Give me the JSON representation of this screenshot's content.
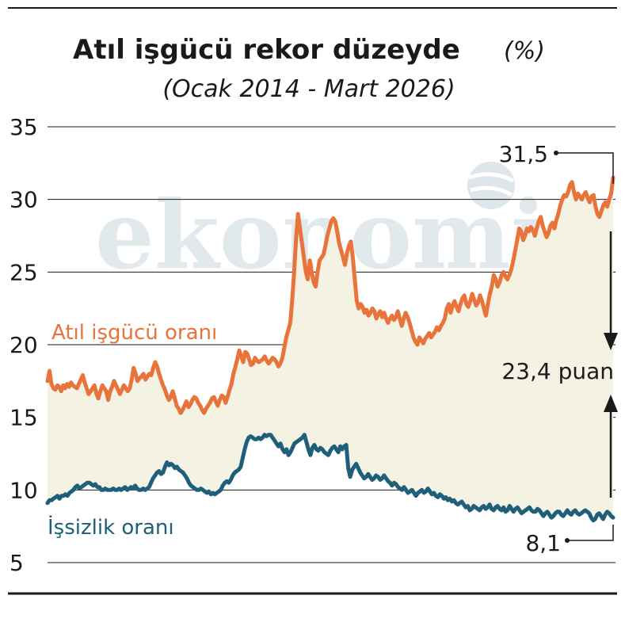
{
  "chart_data": {
    "type": "line",
    "title": "Atıl işgücü rekor düzeyde",
    "title_unit": "(%)",
    "subtitle": "(Ocak 2014 - Mart 2026)",
    "ylim": [
      5,
      35
    ],
    "yticks": [
      "35",
      "30",
      "25",
      "20",
      "15",
      "10",
      "5"
    ],
    "grid": true,
    "x_start": "Ocak 2014",
    "x_end": "Mart 2026",
    "series": [
      {
        "name": "Atıl işgücü oranı",
        "color": "#e8743b",
        "values": [
          17.5,
          18.2,
          17.3,
          17.0,
          16.9,
          17.2,
          17.1,
          16.8,
          17.2,
          17.0,
          17.3,
          17.1,
          17.4,
          17.2,
          17.1,
          17.0,
          17.3,
          17.6,
          17.9,
          17.4,
          17.0,
          16.6,
          16.8,
          17.0,
          17.2,
          16.6,
          16.3,
          16.8,
          17.2,
          17.0,
          16.8,
          16.2,
          16.8,
          17.1,
          17.5,
          17.2,
          16.9,
          16.6,
          16.9,
          17.2,
          17.0,
          16.8,
          17.0,
          17.6,
          18.4,
          18.0,
          17.5,
          17.7,
          17.8,
          18.0,
          17.6,
          17.8,
          18.0,
          17.9,
          18.4,
          18.8,
          18.5,
          18.0,
          17.6,
          17.2,
          16.9,
          16.5,
          16.2,
          16.4,
          16.8,
          16.3,
          15.8,
          15.6,
          15.3,
          15.5,
          15.8,
          16.1,
          15.7,
          15.9,
          16.2,
          16.4,
          16.3,
          16.0,
          15.8,
          15.5,
          15.3,
          15.6,
          15.8,
          16.0,
          16.3,
          16.4,
          16.1,
          15.8,
          16.2,
          16.5,
          16.4,
          16.0,
          16.4,
          16.9,
          17.3,
          18.0,
          18.5,
          19.0,
          19.6,
          19.2,
          18.8,
          19.5,
          19.4,
          19.0,
          18.6,
          18.7,
          19.1,
          18.9,
          18.8,
          18.9,
          19.0,
          19.2,
          18.9,
          18.7,
          18.9,
          19.1,
          19.0,
          18.8,
          18.5,
          18.7,
          19.1,
          19.8,
          20.5,
          21.0,
          21.5,
          23.0,
          25.0,
          27.3,
          29.0,
          28.0,
          27.0,
          26.0,
          25.0,
          24.5,
          25.8,
          25.0,
          24.3,
          24.0,
          25.0,
          25.8,
          26.0,
          26.2,
          26.8,
          27.5,
          28.0,
          28.5,
          28.7,
          28.5,
          27.8,
          27.0,
          26.5,
          26.0,
          25.5,
          26.3,
          26.8,
          27.1,
          26.0,
          24.5,
          23.0,
          22.5,
          22.8,
          22.6,
          22.2,
          22.4,
          22.0,
          22.2,
          22.5,
          22.3,
          21.8,
          22.1,
          22.3,
          21.9,
          22.2,
          21.8,
          21.5,
          21.8,
          22.0,
          21.7,
          21.9,
          22.3,
          21.8,
          21.3,
          21.8,
          22.2,
          21.9,
          21.5,
          21.0,
          20.5,
          20.2,
          20.0,
          20.5,
          20.3,
          20.1,
          20.4,
          20.6,
          20.8,
          20.5,
          20.7,
          20.9,
          21.2,
          21.0,
          21.3,
          21.5,
          21.8,
          22.5,
          22.8,
          22.2,
          22.7,
          23.0,
          22.6,
          22.3,
          22.8,
          23.2,
          23.4,
          22.8,
          22.6,
          23.0,
          23.5,
          23.1,
          22.7,
          22.9,
          23.4,
          23.0,
          22.5,
          22.0,
          22.8,
          23.5,
          24.0,
          24.8,
          24.5,
          24.0,
          24.3,
          24.8,
          25.0,
          24.7,
          24.5,
          24.8,
          25.2,
          25.8,
          26.5,
          27.2,
          28.0,
          27.8,
          27.2,
          27.5,
          28.0,
          27.8,
          28.1,
          27.9,
          27.5,
          28.0,
          28.5,
          28.8,
          28.2,
          27.8,
          27.4,
          27.7,
          28.2,
          28.4,
          28.0,
          28.6,
          29.0,
          29.6,
          30.0,
          30.3,
          30.2,
          30.5,
          31.0,
          31.2,
          30.5,
          30.0,
          30.4,
          30.2,
          30.0,
          30.3,
          30.5,
          30.1,
          29.8,
          30.2,
          30.3,
          29.5,
          29.0,
          28.8,
          29.2,
          29.6,
          29.8,
          29.5,
          30.0,
          30.4,
          31.5
        ]
      },
      {
        "name": "İşsizlik oranı",
        "color": "#1f5f7a",
        "values": [
          9.1,
          9.3,
          9.3,
          9.4,
          9.5,
          9.6,
          9.4,
          9.6,
          9.6,
          9.7,
          9.6,
          9.8,
          9.9,
          10.0,
          10.2,
          10.3,
          10.1,
          10.2,
          10.3,
          10.4,
          10.5,
          10.5,
          10.4,
          10.3,
          10.4,
          10.2,
          10.2,
          10.0,
          10.0,
          10.1,
          10.0,
          10.0,
          10.0,
          10.1,
          10.0,
          10.0,
          10.1,
          10.0,
          10.1,
          10.2,
          10.0,
          10.1,
          10.2,
          10.1,
          10.3,
          10.1,
          10.0,
          10.0,
          10.1,
          10.0,
          10.1,
          10.2,
          10.5,
          10.8,
          11.0,
          11.2,
          11.3,
          11.1,
          11.2,
          11.6,
          11.9,
          11.7,
          11.8,
          11.7,
          11.5,
          11.6,
          11.4,
          11.3,
          11.2,
          11.0,
          10.8,
          10.5,
          10.3,
          10.2,
          10.1,
          10.0,
          10.0,
          10.1,
          10.0,
          9.9,
          9.8,
          9.9,
          9.7,
          9.8,
          9.7,
          9.8,
          9.9,
          10.0,
          10.3,
          10.5,
          10.6,
          10.5,
          10.7,
          11.0,
          11.2,
          11.3,
          11.4,
          11.6,
          12.2,
          12.8,
          13.3,
          13.6,
          13.7,
          13.6,
          13.5,
          13.5,
          13.6,
          13.5,
          13.6,
          13.8,
          13.7,
          13.8,
          13.8,
          13.6,
          13.4,
          13.2,
          13.0,
          13.2,
          12.8,
          12.6,
          12.8,
          12.4,
          12.6,
          12.9,
          13.2,
          13.3,
          13.4,
          13.5,
          13.6,
          13.8,
          13.3,
          12.8,
          12.4,
          12.9,
          13.1,
          12.8,
          12.7,
          12.9,
          12.8,
          12.6,
          12.5,
          12.4,
          12.7,
          12.9,
          13.0,
          12.8,
          12.6,
          13.0,
          12.8,
          13.0,
          13.1,
          11.5,
          10.9,
          11.4,
          11.6,
          11.8,
          11.5,
          11.2,
          11.0,
          10.8,
          10.9,
          11.1,
          10.9,
          10.7,
          10.8,
          11.0,
          10.9,
          10.7,
          10.8,
          11.0,
          10.8,
          10.6,
          10.5,
          10.3,
          10.5,
          10.4,
          10.2,
          10.1,
          10.0,
          10.2,
          10.0,
          9.8,
          9.9,
          10.0,
          9.8,
          9.6,
          9.8,
          9.9,
          10.0,
          9.8,
          9.9,
          10.1,
          9.9,
          9.7,
          9.8,
          9.6,
          9.5,
          9.7,
          9.6,
          9.4,
          9.5,
          9.3,
          9.4,
          9.2,
          9.3,
          9.1,
          9.0,
          9.1,
          9.2,
          9.0,
          8.8,
          8.9,
          8.6,
          8.7,
          8.9,
          8.8,
          8.7,
          8.6,
          8.8,
          8.9,
          8.7,
          8.8,
          9.0,
          8.7,
          8.6,
          8.8,
          8.9,
          8.7,
          8.6,
          8.8,
          8.5,
          8.6,
          8.9,
          8.7,
          8.5,
          8.7,
          8.8,
          8.6,
          8.4,
          8.5,
          8.6,
          8.7,
          8.8,
          8.6,
          8.5,
          8.5,
          8.7,
          8.6,
          8.4,
          8.2,
          8.4,
          8.5,
          8.3,
          8.1,
          8.2,
          8.4,
          8.5,
          8.5,
          8.3,
          8.2,
          8.4,
          8.6,
          8.4,
          8.3,
          8.5,
          8.6,
          8.4,
          8.3,
          8.4,
          8.5,
          8.6,
          8.5,
          8.4,
          8.1,
          7.9,
          8.0,
          8.3,
          8.4,
          8.2,
          8.0,
          8.3,
          8.5,
          8.4,
          8.2,
          8.1
        ]
      }
    ],
    "annotations": {
      "end_high": "31,5",
      "end_low": "8,1",
      "gap": "23,4 puan"
    },
    "watermark": "ekonomi"
  }
}
